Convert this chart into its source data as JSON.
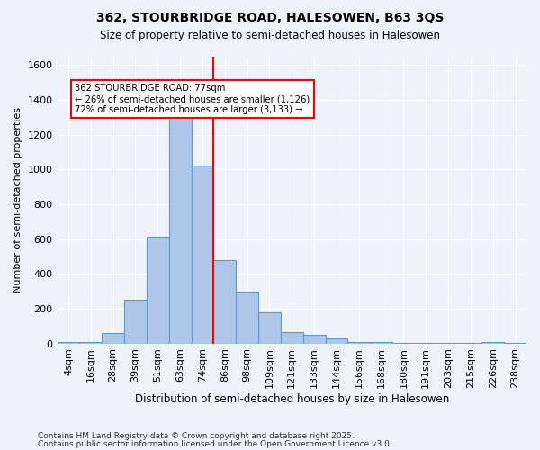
{
  "title1": "362, STOURBRIDGE ROAD, HALESOWEN, B63 3QS",
  "title2": "Size of property relative to semi-detached houses in Halesowen",
  "xlabel": "Distribution of semi-detached houses by size in Halesowen",
  "ylabel": "Number of semi-detached properties",
  "bins": [
    "4sqm",
    "16sqm",
    "28sqm",
    "39sqm",
    "51sqm",
    "63sqm",
    "74sqm",
    "86sqm",
    "98sqm",
    "109sqm",
    "121sqm",
    "133sqm",
    "144sqm",
    "156sqm",
    "168sqm",
    "180sqm",
    "191sqm",
    "203sqm",
    "215sqm",
    "226sqm",
    "238sqm"
  ],
  "values": [
    10,
    10,
    60,
    250,
    615,
    1310,
    1020,
    480,
    300,
    180,
    65,
    50,
    30,
    10,
    10,
    5,
    5,
    5,
    5,
    10,
    5
  ],
  "bar_color": "#aec6e8",
  "bar_edge_color": "#5b9bd5",
  "vline_x_index": 6,
  "vline_color": "red",
  "annotation_text": "362 STOURBRIDGE ROAD: 77sqm\n← 26% of semi-detached houses are smaller (1,126)\n72% of semi-detached houses are larger (3,133) →",
  "annotation_box_color": "white",
  "annotation_box_edge": "red",
  "ylim": [
    0,
    1650
  ],
  "yticks": [
    0,
    200,
    400,
    600,
    800,
    1000,
    1200,
    1400,
    1600
  ],
  "footnote1": "Contains HM Land Registry data © Crown copyright and database right 2025.",
  "footnote2": "Contains public sector information licensed under the Open Government Licence v3.0.",
  "bg_color": "#eef2f9"
}
